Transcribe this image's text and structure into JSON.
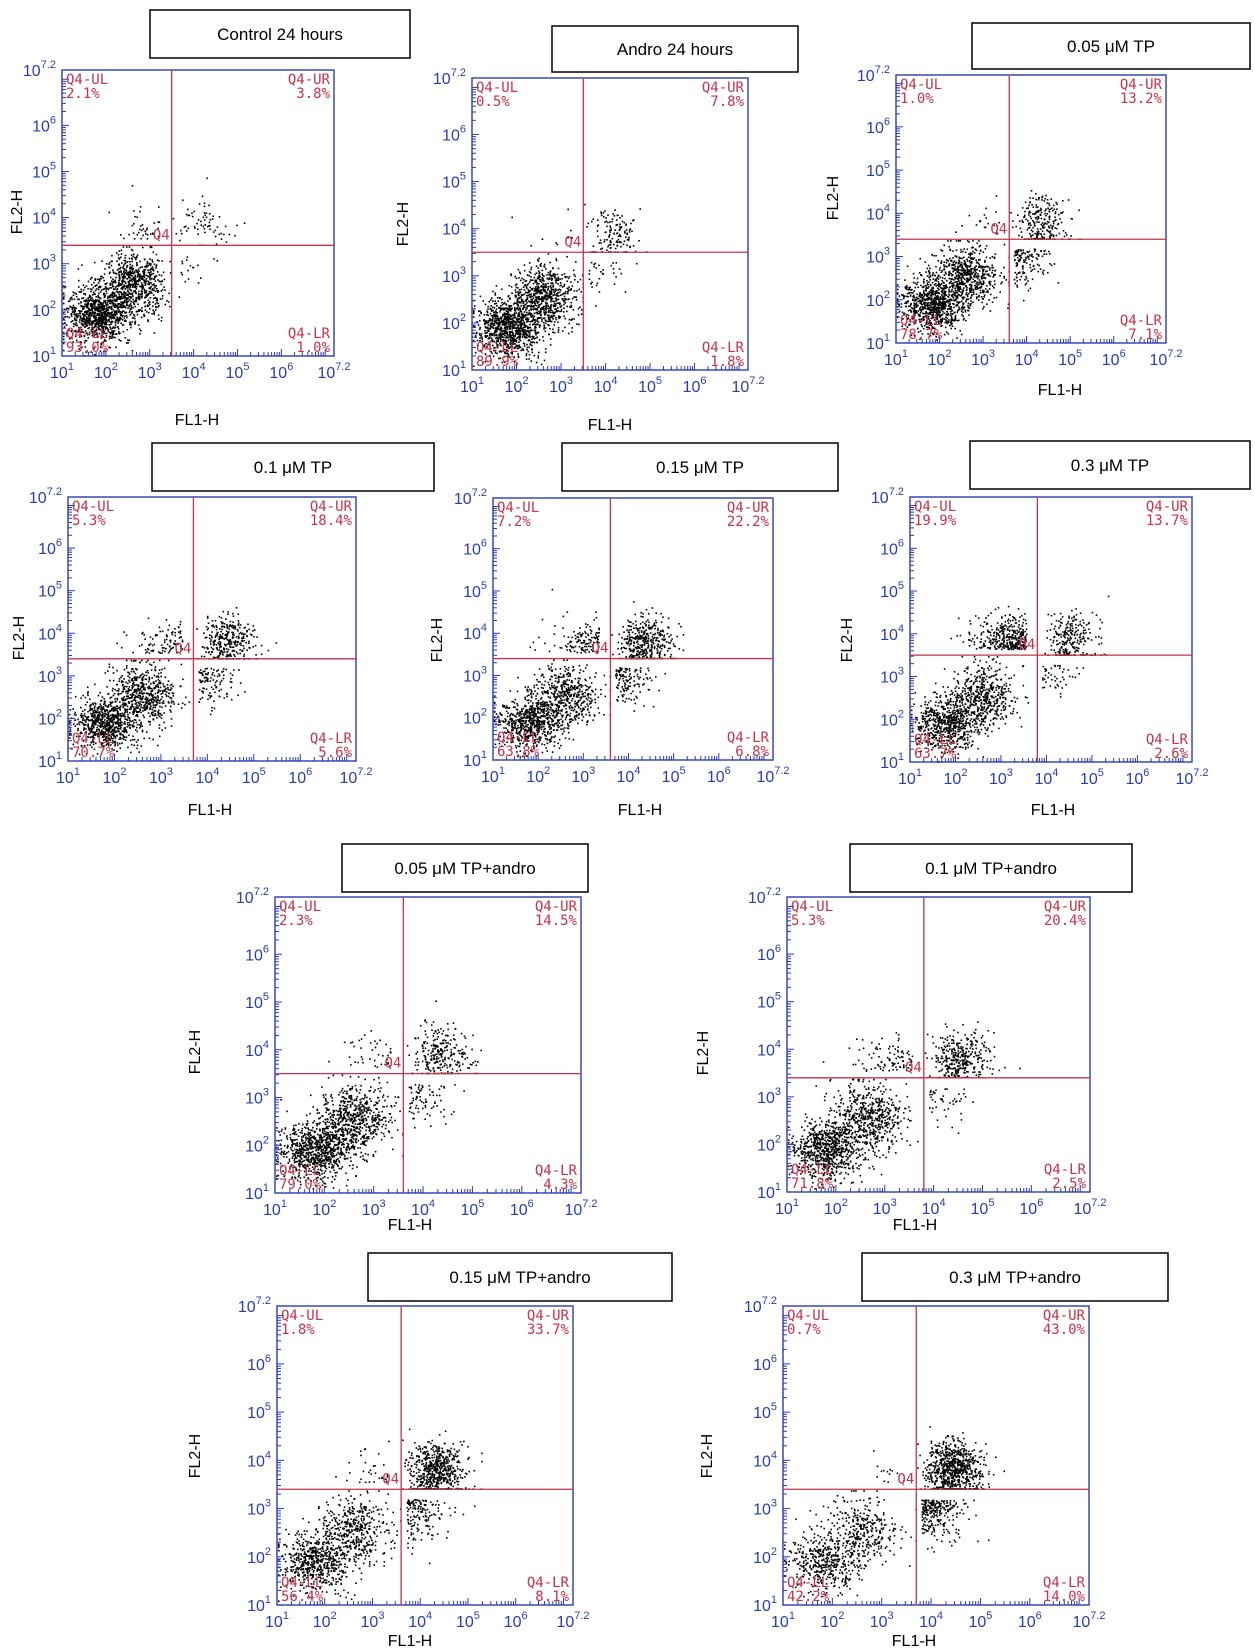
{
  "chart_data": [
    {
      "type": "scatter",
      "title": "Control 24 hours",
      "xlabel": "FL1-H",
      "ylabel": "FL2-H",
      "xlim": [
        1,
        7.2
      ],
      "ylim": [
        1,
        7.2
      ],
      "log_scale": true,
      "gate": {
        "x": 3.5,
        "y": 3.4
      },
      "quadrants": {
        "UL": {
          "name": "Q4-UL",
          "value": "2.1%"
        },
        "UR": {
          "name": "Q4-UR",
          "value": "3.8%"
        },
        "LL": {
          "name": "Q4-LL",
          "value": "93.0%"
        },
        "LR": {
          "name": "Q4-LR",
          "value": "1.0%"
        },
        "center": "Q4"
      },
      "x_ticks": [
        "1",
        "2",
        "3",
        "4",
        "5",
        "6",
        "7.2"
      ],
      "y_ticks": [
        "1",
        "2",
        "3",
        "4",
        "5",
        "6",
        "7.2"
      ]
    },
    {
      "type": "scatter",
      "title": "Andro 24 hours",
      "xlabel": "FL1-H",
      "ylabel": "FL2-H",
      "xlim": [
        1,
        7.2
      ],
      "ylim": [
        1,
        7.2
      ],
      "log_scale": true,
      "gate": {
        "x": 3.5,
        "y": 3.5
      },
      "quadrants": {
        "UL": {
          "name": "Q4-UL",
          "value": "0.5%"
        },
        "UR": {
          "name": "Q4-UR",
          "value": "7.8%"
        },
        "LL": {
          "name": "Q4-LL",
          "value": "89.9%"
        },
        "LR": {
          "name": "Q4-LR",
          "value": "1.8%"
        },
        "center": "Q4"
      },
      "x_ticks": [
        "1",
        "2",
        "3",
        "4",
        "5",
        "6",
        "7.2"
      ],
      "y_ticks": [
        "1",
        "2",
        "3",
        "4",
        "5",
        "6",
        "7.2"
      ]
    },
    {
      "type": "scatter",
      "title": "0.05 μM TP",
      "xlabel": "FL1-H",
      "ylabel": "FL2-H",
      "xlim": [
        1,
        7.2
      ],
      "ylim": [
        1,
        7.2
      ],
      "log_scale": true,
      "gate": {
        "x": 3.6,
        "y": 3.4
      },
      "quadrants": {
        "UL": {
          "name": "Q4-UL",
          "value": "1.0%"
        },
        "UR": {
          "name": "Q4-UR",
          "value": "13.2%"
        },
        "LL": {
          "name": "Q4-LL",
          "value": "78.7%"
        },
        "LR": {
          "name": "Q4-LR",
          "value": "7.1%"
        },
        "center": "Q4"
      },
      "x_ticks": [
        "1",
        "2",
        "3",
        "4",
        "5",
        "6",
        "7.2"
      ],
      "y_ticks": [
        "1",
        "2",
        "3",
        "4",
        "5",
        "6",
        "7.2"
      ]
    },
    {
      "type": "scatter",
      "title": "0.1 μM TP",
      "xlabel": "FL1-H",
      "ylabel": "FL2-H",
      "xlim": [
        1,
        7.2
      ],
      "ylim": [
        1,
        7.2
      ],
      "log_scale": true,
      "gate": {
        "x": 3.7,
        "y": 3.4
      },
      "quadrants": {
        "UL": {
          "name": "Q4-UL",
          "value": "5.3%"
        },
        "UR": {
          "name": "Q4-UR",
          "value": "18.4%"
        },
        "LL": {
          "name": "Q4-LL",
          "value": "70.7%"
        },
        "LR": {
          "name": "Q4-LR",
          "value": "5.6%"
        },
        "center": "Q4"
      },
      "x_ticks": [
        "1",
        "2",
        "3",
        "4",
        "5",
        "6",
        "7.2"
      ],
      "y_ticks": [
        "1",
        "2",
        "3",
        "4",
        "5",
        "6",
        "7.2"
      ]
    },
    {
      "type": "scatter",
      "title": "0.15 μM TP",
      "xlabel": "FL1-H",
      "ylabel": "FL2-H",
      "xlim": [
        1,
        7.2
      ],
      "ylim": [
        1,
        7.2
      ],
      "log_scale": true,
      "gate": {
        "x": 3.6,
        "y": 3.4
      },
      "quadrants": {
        "UL": {
          "name": "Q4-UL",
          "value": "7.2%"
        },
        "UR": {
          "name": "Q4-UR",
          "value": "22.2%"
        },
        "LL": {
          "name": "Q4-LL",
          "value": "63.8%"
        },
        "LR": {
          "name": "Q4-LR",
          "value": "6.8%"
        },
        "center": "Q4"
      },
      "x_ticks": [
        "1",
        "2",
        "3",
        "4",
        "5",
        "6",
        "7.2"
      ],
      "y_ticks": [
        "1",
        "2",
        "3",
        "4",
        "5",
        "6",
        "7.2"
      ]
    },
    {
      "type": "scatter",
      "title": "0.3 μM TP",
      "xlabel": "FL1-H",
      "ylabel": "FL2-H",
      "xlim": [
        1,
        7.2
      ],
      "ylim": [
        1,
        7.2
      ],
      "log_scale": true,
      "gate": {
        "x": 3.8,
        "y": 3.5
      },
      "quadrants": {
        "UL": {
          "name": "Q4-UL",
          "value": "19.9%"
        },
        "UR": {
          "name": "Q4-UR",
          "value": "13.7%"
        },
        "LL": {
          "name": "Q4-LL",
          "value": "63.7%"
        },
        "LR": {
          "name": "Q4-LR",
          "value": "2.6%"
        },
        "center": "Q4"
      },
      "x_ticks": [
        "1",
        "2",
        "3",
        "4",
        "5",
        "6",
        "7.2"
      ],
      "y_ticks": [
        "1",
        "2",
        "3",
        "4",
        "5",
        "6",
        "7.2"
      ]
    },
    {
      "type": "scatter",
      "title": "0.05 μM TP+andro",
      "xlabel": "FL1-H",
      "ylabel": "FL2-H",
      "xlim": [
        1,
        7.2
      ],
      "ylim": [
        1,
        7.2
      ],
      "log_scale": true,
      "gate": {
        "x": 3.6,
        "y": 3.5
      },
      "quadrants": {
        "UL": {
          "name": "Q4-UL",
          "value": "2.3%"
        },
        "UR": {
          "name": "Q4-UR",
          "value": "14.5%"
        },
        "LL": {
          "name": "Q4-LL",
          "value": "79.0%"
        },
        "LR": {
          "name": "Q4-LR",
          "value": "4.3%"
        },
        "center": "Q4"
      },
      "x_ticks": [
        "1",
        "2",
        "3",
        "4",
        "5",
        "6",
        "7.2"
      ],
      "y_ticks": [
        "1",
        "2",
        "3",
        "4",
        "5",
        "6",
        "7.2"
      ]
    },
    {
      "type": "scatter",
      "title": "0.1 μM TP+andro",
      "xlabel": "FL1-H",
      "ylabel": "FL2-H",
      "xlim": [
        1,
        7.2
      ],
      "ylim": [
        1,
        7.2
      ],
      "log_scale": true,
      "gate": {
        "x": 3.8,
        "y": 3.4
      },
      "quadrants": {
        "UL": {
          "name": "Q4-UL",
          "value": "5.3%"
        },
        "UR": {
          "name": "Q4-UR",
          "value": "20.4%"
        },
        "LL": {
          "name": "Q4-LL",
          "value": "71.8%"
        },
        "LR": {
          "name": "Q4-LR",
          "value": "2.5%"
        },
        "center": "Q4"
      },
      "x_ticks": [
        "1",
        "2",
        "3",
        "4",
        "5",
        "6",
        "7.2"
      ],
      "y_ticks": [
        "1",
        "2",
        "3",
        "4",
        "5",
        "6",
        "7.2"
      ]
    },
    {
      "type": "scatter",
      "title": "0.15 μM TP+andro",
      "xlabel": "FL1-H",
      "ylabel": "FL2-H",
      "xlim": [
        1,
        7.2
      ],
      "ylim": [
        1,
        7.2
      ],
      "log_scale": true,
      "gate": {
        "x": 3.6,
        "y": 3.4
      },
      "quadrants": {
        "UL": {
          "name": "Q4-UL",
          "value": "1.8%"
        },
        "UR": {
          "name": "Q4-UR",
          "value": "33.7%"
        },
        "LL": {
          "name": "Q4-LL",
          "value": "56.4%"
        },
        "LR": {
          "name": "Q4-LR",
          "value": "8.1%"
        },
        "center": "Q4"
      },
      "x_ticks": [
        "1",
        "2",
        "3",
        "4",
        "5",
        "6",
        "7.2"
      ],
      "y_ticks": [
        "1",
        "2",
        "3",
        "4",
        "5",
        "6",
        "7.2"
      ]
    },
    {
      "type": "scatter",
      "title": "0.3 μM TP+andro",
      "xlabel": "FL1-H",
      "ylabel": "FL2-H",
      "xlim": [
        1,
        7.2
      ],
      "ylim": [
        1,
        7.2
      ],
      "log_scale": true,
      "gate": {
        "x": 3.7,
        "y": 3.4
      },
      "quadrants": {
        "UL": {
          "name": "Q4-UL",
          "value": "0.7%"
        },
        "UR": {
          "name": "Q4-UR",
          "value": "43.0%"
        },
        "LL": {
          "name": "Q4-LL",
          "value": "42.2%"
        },
        "LR": {
          "name": "Q4-LR",
          "value": "14.0%"
        },
        "center": "Q4"
      },
      "x_ticks": [
        "1",
        "2",
        "3",
        "4",
        "5",
        "6",
        "7.2"
      ],
      "y_ticks": [
        "1",
        "2",
        "3",
        "4",
        "5",
        "6",
        "7.2"
      ]
    }
  ],
  "colors": {
    "frame": "#2b3bb3",
    "gate": "#c8324a",
    "points": "#000000"
  },
  "tick_base": "10"
}
